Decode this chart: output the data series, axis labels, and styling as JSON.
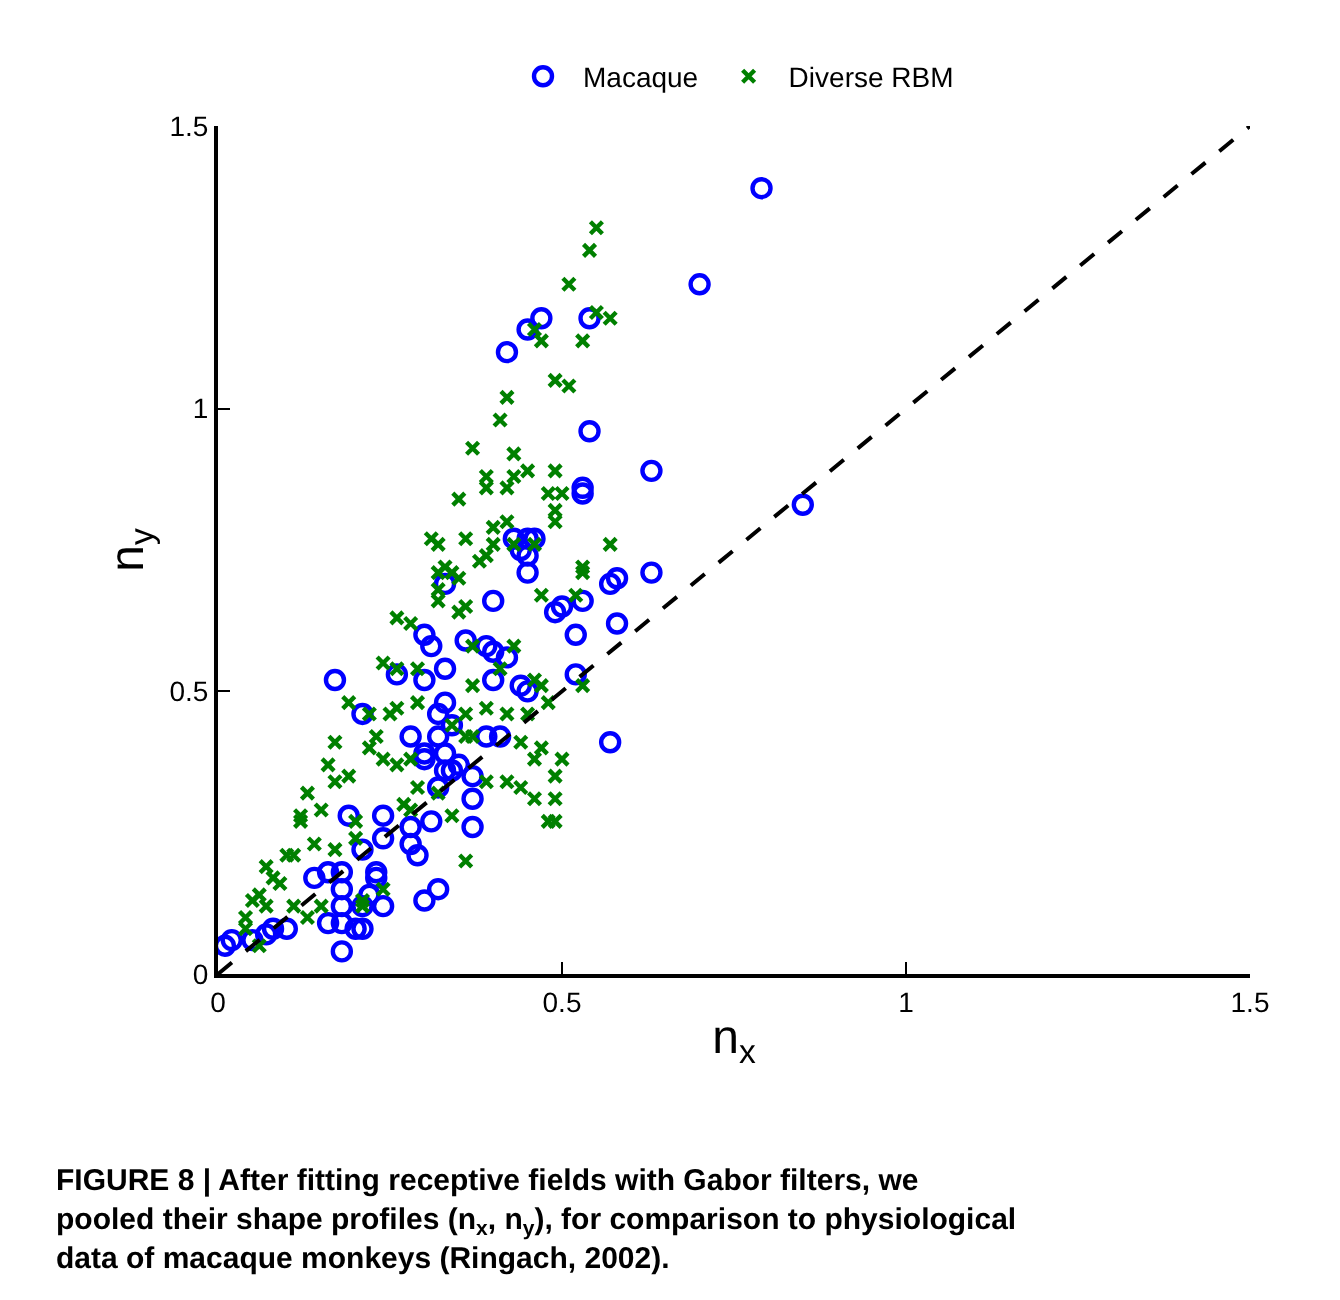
{
  "chart_data": {
    "type": "scatter",
    "xlabel": "n$_{x}$",
    "ylabel": "n$_{y}$",
    "xlim": [
      0,
      1.5
    ],
    "ylim": [
      0,
      1.5
    ],
    "xticks": [
      0,
      0.5,
      1,
      1.5
    ],
    "yticks": [
      0,
      0.5,
      1,
      1.5
    ],
    "legend": "top",
    "annotations": [
      "FIGURE 8 | After fitting receptive fields with Gabor filters, we pooled their shape profiles (n$_{x}$, n$_{y}$), for comparison to physiological data of macaque monkeys (Ringach, 2002)."
    ],
    "series": [
      {
        "name": "Macaque",
        "color": "#0000ff",
        "marker": "circle",
        "x": [
          0.79,
          0.7,
          0.85,
          0.63,
          0.63,
          0.58,
          0.57,
          0.57,
          0.58,
          0.53,
          0.54,
          0.54,
          0.47,
          0.45,
          0.42,
          0.52,
          0.53,
          0.49,
          0.45,
          0.45,
          0.4,
          0.33,
          0.5,
          0.52,
          0.3,
          0.31,
          0.36,
          0.39,
          0.4,
          0.42,
          0.17,
          0.26,
          0.3,
          0.33,
          0.4,
          0.44,
          0.45,
          0.21,
          0.33,
          0.32,
          0.34,
          0.28,
          0.32,
          0.39,
          0.41,
          0.3,
          0.3,
          0.33,
          0.33,
          0.35,
          0.34,
          0.32,
          0.37,
          0.37,
          0.37,
          0.19,
          0.24,
          0.28,
          0.31,
          0.28,
          0.29,
          0.24,
          0.21,
          0.23,
          0.23,
          0.14,
          0.16,
          0.18,
          0.18,
          0.22,
          0.24,
          0.18,
          0.21,
          0.3,
          0.32,
          0.18,
          0.2,
          0.21,
          0.16,
          0.18,
          0.1,
          0.08,
          0.07,
          0.05,
          0.02,
          0.01,
          0.53,
          0.43,
          0.46,
          0.44,
          0.45
        ],
        "values": [
          1.39,
          1.22,
          0.83,
          0.89,
          0.71,
          0.7,
          0.69,
          0.41,
          0.62,
          0.86,
          0.96,
          1.16,
          1.16,
          1.14,
          1.1,
          0.53,
          0.66,
          0.64,
          0.77,
          0.71,
          0.66,
          0.69,
          0.65,
          0.6,
          0.6,
          0.58,
          0.59,
          0.58,
          0.57,
          0.56,
          0.52,
          0.53,
          0.52,
          0.54,
          0.52,
          0.51,
          0.5,
          0.46,
          0.48,
          0.46,
          0.44,
          0.42,
          0.42,
          0.42,
          0.42,
          0.39,
          0.38,
          0.39,
          0.36,
          0.37,
          0.36,
          0.33,
          0.35,
          0.31,
          0.26,
          0.28,
          0.28,
          0.26,
          0.27,
          0.23,
          0.21,
          0.24,
          0.22,
          0.18,
          0.17,
          0.17,
          0.18,
          0.18,
          0.15,
          0.14,
          0.12,
          0.12,
          0.12,
          0.13,
          0.15,
          0.09,
          0.08,
          0.08,
          0.09,
          0.04,
          0.08,
          0.08,
          0.07,
          0.06,
          0.06,
          0.05,
          0.85,
          0.77,
          0.77,
          0.75,
          0.74
        ]
      },
      {
        "name": "Diverse RBM",
        "color": "#008000",
        "marker": "cross",
        "x": [
          0.55,
          0.54,
          0.51,
          0.55,
          0.57,
          0.46,
          0.47,
          0.53,
          0.49,
          0.51,
          0.42,
          0.41,
          0.37,
          0.43,
          0.45,
          0.43,
          0.39,
          0.39,
          0.49,
          0.35,
          0.42,
          0.48,
          0.5,
          0.49,
          0.49,
          0.31,
          0.32,
          0.36,
          0.4,
          0.4,
          0.42,
          0.43,
          0.46,
          0.57,
          0.33,
          0.34,
          0.38,
          0.39,
          0.53,
          0.32,
          0.35,
          0.36,
          0.35,
          0.32,
          0.32,
          0.26,
          0.28,
          0.24,
          0.26,
          0.29,
          0.29,
          0.19,
          0.22,
          0.23,
          0.22,
          0.25,
          0.26,
          0.17,
          0.16,
          0.17,
          0.19,
          0.13,
          0.24,
          0.26,
          0.28,
          0.27,
          0.28,
          0.15,
          0.12,
          0.12,
          0.07,
          0.08,
          0.1,
          0.11,
          0.14,
          0.17,
          0.2,
          0.2,
          0.09,
          0.06,
          0.05,
          0.07,
          0.04,
          0.04,
          0.06,
          0.11,
          0.13,
          0.15,
          0.21,
          0.21,
          0.24,
          0.36,
          0.34,
          0.29,
          0.32,
          0.36,
          0.39,
          0.42,
          0.34,
          0.36,
          0.37,
          0.39,
          0.42,
          0.44,
          0.46,
          0.44,
          0.46,
          0.48,
          0.49,
          0.47,
          0.5,
          0.49,
          0.49,
          0.45,
          0.48,
          0.46,
          0.47,
          0.53,
          0.41,
          0.43,
          0.37,
          0.37,
          0.53,
          0.47,
          0.52
        ],
        "values": [
          1.32,
          1.28,
          1.22,
          1.17,
          1.16,
          1.14,
          1.12,
          1.12,
          1.05,
          1.04,
          1.02,
          0.98,
          0.93,
          0.92,
          0.89,
          0.88,
          0.88,
          0.86,
          0.89,
          0.84,
          0.86,
          0.85,
          0.85,
          0.82,
          0.8,
          0.77,
          0.76,
          0.77,
          0.79,
          0.76,
          0.8,
          0.76,
          0.76,
          0.76,
          0.72,
          0.71,
          0.73,
          0.74,
          0.72,
          0.71,
          0.7,
          0.65,
          0.64,
          0.66,
          0.68,
          0.63,
          0.62,
          0.55,
          0.54,
          0.54,
          0.48,
          0.48,
          0.46,
          0.42,
          0.4,
          0.46,
          0.47,
          0.41,
          0.37,
          0.34,
          0.35,
          0.32,
          0.38,
          0.37,
          0.38,
          0.3,
          0.29,
          0.29,
          0.28,
          0.27,
          0.19,
          0.17,
          0.21,
          0.21,
          0.23,
          0.22,
          0.24,
          0.27,
          0.16,
          0.14,
          0.13,
          0.12,
          0.1,
          0.08,
          0.05,
          0.12,
          0.1,
          0.12,
          0.13,
          0.12,
          0.15,
          0.2,
          0.28,
          0.33,
          0.32,
          0.46,
          0.47,
          0.46,
          0.44,
          0.42,
          0.42,
          0.34,
          0.34,
          0.41,
          0.38,
          0.33,
          0.31,
          0.27,
          0.27,
          0.4,
          0.38,
          0.35,
          0.31,
          0.46,
          0.48,
          0.52,
          0.51,
          0.51,
          0.54,
          0.58,
          0.51,
          0.58,
          0.71,
          0.67,
          0.67
        ]
      },
      {
        "type": "line",
        "color": "#000000",
        "line_style": "dashed",
        "marker": "none",
        "x": [
          0,
          1.5
        ],
        "values": [
          0,
          1.5
        ]
      }
    ]
  }
}
